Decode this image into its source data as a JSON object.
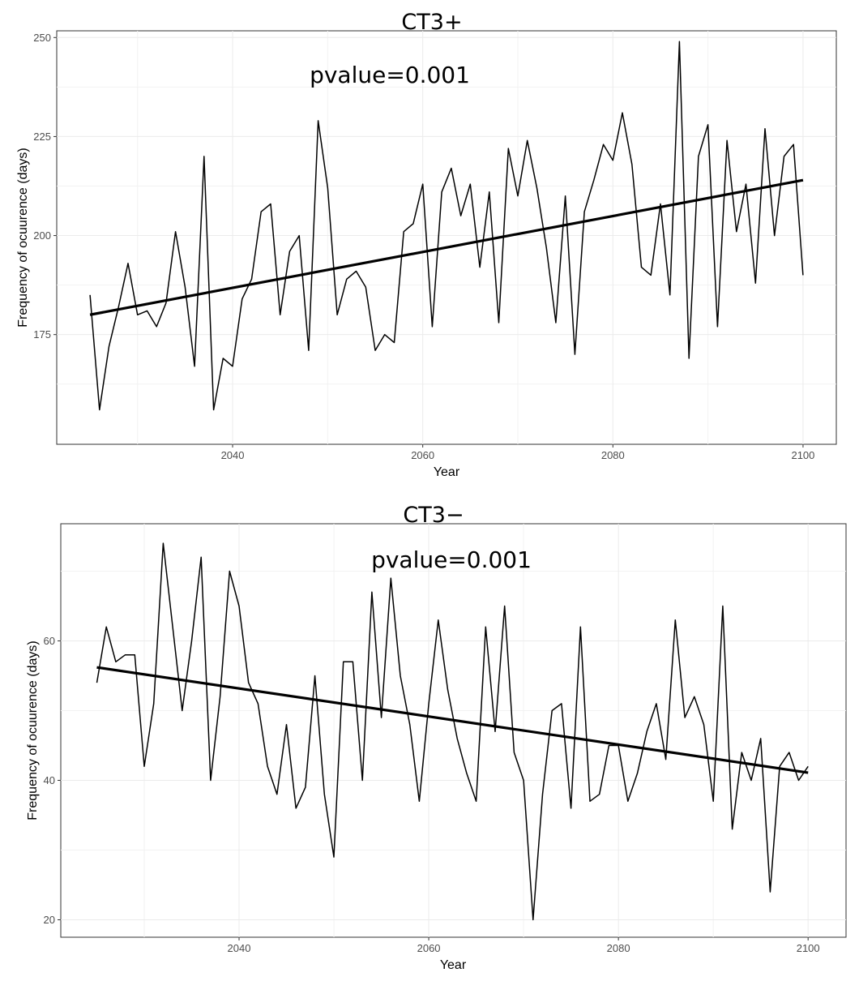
{
  "chart_data": [
    {
      "type": "line",
      "title": "CT3+",
      "annotation": "pvalue=0.001",
      "xlabel": "Year",
      "ylabel": "Frequency of ocuurence (days)",
      "xlim": [
        2021.5,
        2103.5
      ],
      "ylim": [
        147.3,
        251.7
      ],
      "xticks": [
        2040,
        2060,
        2080,
        2100
      ],
      "yticks": [
        175,
        200,
        225,
        250
      ],
      "x": [
        2025,
        2026,
        2027,
        2028,
        2029,
        2030,
        2031,
        2032,
        2033,
        2034,
        2035,
        2036,
        2037,
        2038,
        2039,
        2040,
        2041,
        2042,
        2043,
        2044,
        2045,
        2046,
        2047,
        2048,
        2049,
        2050,
        2051,
        2052,
        2053,
        2054,
        2055,
        2056,
        2057,
        2058,
        2059,
        2060,
        2061,
        2062,
        2063,
        2064,
        2065,
        2066,
        2067,
        2068,
        2069,
        2070,
        2071,
        2072,
        2073,
        2074,
        2075,
        2076,
        2077,
        2078,
        2079,
        2080,
        2081,
        2082,
        2083,
        2084,
        2085,
        2086,
        2087,
        2088,
        2089,
        2090,
        2091,
        2092,
        2093,
        2094,
        2095,
        2096,
        2097,
        2098,
        2099,
        2100
      ],
      "series": [
        {
          "name": "frequency",
          "values": [
            185,
            156,
            172,
            182,
            193,
            180,
            181,
            177,
            183,
            201,
            187,
            167,
            220,
            156,
            169,
            167,
            184,
            189,
            206,
            208,
            180,
            196,
            200,
            171,
            229,
            212,
            180,
            189,
            191,
            187,
            171,
            175,
            173,
            201,
            203,
            213,
            177,
            211,
            217,
            205,
            213,
            192,
            211,
            178,
            222,
            210,
            224,
            212,
            197,
            178,
            210,
            170,
            206,
            214,
            223,
            219,
            231,
            218,
            192,
            190,
            208,
            185,
            249,
            169,
            220,
            228,
            177,
            224,
            201,
            213,
            188,
            227,
            200,
            220,
            223,
            190
          ]
        },
        {
          "name": "trend",
          "values": [
            180,
            214
          ],
          "x": [
            2025,
            2100
          ]
        }
      ]
    },
    {
      "type": "line",
      "title": "CT3−",
      "annotation": "pvalue=0.001",
      "xlabel": "Year",
      "ylabel": "Frequency of ocuurence (days)",
      "xlim": [
        2021.2,
        2104.0
      ],
      "ylim": [
        17.5,
        76.8
      ],
      "xticks": [
        2040,
        2060,
        2080,
        2100
      ],
      "yticks": [
        20,
        40,
        60
      ],
      "x": [
        2025,
        2026,
        2027,
        2028,
        2029,
        2030,
        2031,
        2032,
        2033,
        2034,
        2035,
        2036,
        2037,
        2038,
        2039,
        2040,
        2041,
        2042,
        2043,
        2044,
        2045,
        2046,
        2047,
        2048,
        2049,
        2050,
        2051,
        2052,
        2053,
        2054,
        2055,
        2056,
        2057,
        2058,
        2059,
        2060,
        2061,
        2062,
        2063,
        2064,
        2065,
        2066,
        2067,
        2068,
        2069,
        2070,
        2071,
        2072,
        2073,
        2074,
        2075,
        2076,
        2077,
        2078,
        2079,
        2080,
        2081,
        2082,
        2083,
        2084,
        2085,
        2086,
        2087,
        2088,
        2089,
        2090,
        2091,
        2092,
        2093,
        2094,
        2095,
        2096,
        2097,
        2098,
        2099,
        2100
      ],
      "series": [
        {
          "name": "frequency",
          "values": [
            54,
            62,
            57,
            58,
            58,
            42,
            51,
            74,
            62,
            50,
            60,
            72,
            40,
            52,
            70,
            65,
            54,
            51,
            42,
            38,
            48,
            36,
            39,
            55,
            38,
            29,
            57,
            57,
            40,
            67,
            49,
            69,
            55,
            48,
            37,
            51,
            63,
            53,
            46,
            41,
            37,
            62,
            47,
            65,
            44,
            40,
            20,
            38,
            50,
            51,
            36,
            62,
            37,
            38,
            45,
            45,
            37,
            41,
            47,
            51,
            43,
            63,
            49,
            52,
            48,
            37,
            65,
            33,
            44,
            40,
            46,
            24,
            42,
            44,
            40,
            42
          ]
        },
        {
          "name": "trend",
          "values": [
            56.2,
            41.1
          ],
          "x": [
            2025,
            2100
          ]
        }
      ]
    }
  ]
}
